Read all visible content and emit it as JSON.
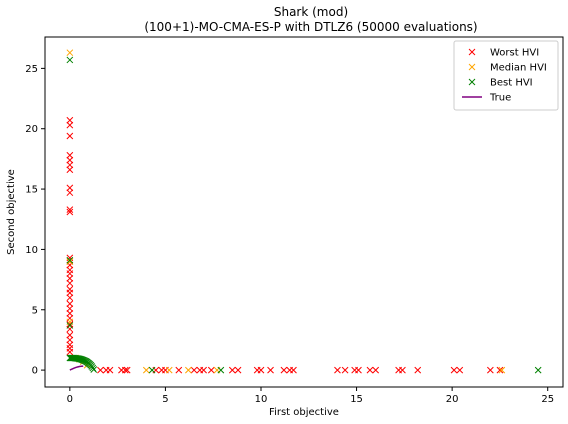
{
  "chart_data": {
    "type": "scatter",
    "title_line1": "Shark (mod)",
    "title_line2": "(100+1)-MO-CMA-ES-P with DTLZ6 (50000 evaluations)",
    "xlabel": "First objective",
    "ylabel": "Second objective",
    "xlim": [
      -1.3,
      25.8
    ],
    "ylim": [
      -1.4,
      27.6
    ],
    "xticks": [
      0,
      5,
      10,
      15,
      20,
      25
    ],
    "yticks": [
      0,
      5,
      10,
      15,
      20,
      25
    ],
    "grid": false,
    "legend_position": "top-right",
    "series": [
      {
        "name": "Worst HVI",
        "marker": "x",
        "color": "#ff0000",
        "points": [
          [
            0.0,
            20.7
          ],
          [
            0.0,
            20.3
          ],
          [
            0.0,
            19.4
          ],
          [
            0.0,
            17.8
          ],
          [
            0.0,
            17.4
          ],
          [
            0.0,
            17.0
          ],
          [
            0.0,
            16.6
          ],
          [
            0.0,
            15.1
          ],
          [
            0.0,
            14.7
          ],
          [
            0.0,
            13.3
          ],
          [
            0.0,
            13.1
          ],
          [
            0.0,
            9.3
          ],
          [
            0.0,
            9.0
          ],
          [
            0.0,
            8.7
          ],
          [
            0.0,
            8.3
          ],
          [
            0.0,
            8.0
          ],
          [
            0.0,
            7.6
          ],
          [
            0.0,
            7.2
          ],
          [
            0.0,
            6.7
          ],
          [
            0.0,
            6.4
          ],
          [
            0.0,
            6.0
          ],
          [
            0.0,
            5.5
          ],
          [
            0.0,
            5.1
          ],
          [
            0.0,
            4.7
          ],
          [
            0.0,
            4.3
          ],
          [
            0.0,
            3.8
          ],
          [
            0.0,
            3.4
          ],
          [
            0.0,
            2.9
          ],
          [
            0.0,
            2.5
          ],
          [
            0.0,
            2.1
          ],
          [
            0.0,
            1.8
          ],
          [
            0.0,
            1.5
          ],
          [
            1.6,
            0.0
          ],
          [
            1.9,
            0.0
          ],
          [
            2.1,
            0.0
          ],
          [
            2.7,
            0.0
          ],
          [
            2.9,
            0.0
          ],
          [
            3.0,
            0.0
          ],
          [
            4.5,
            0.0
          ],
          [
            4.8,
            0.0
          ],
          [
            5.0,
            0.0
          ],
          [
            5.7,
            0.0
          ],
          [
            6.5,
            0.0
          ],
          [
            6.8,
            0.0
          ],
          [
            7.0,
            0.0
          ],
          [
            7.4,
            0.0
          ],
          [
            8.5,
            0.0
          ],
          [
            8.8,
            0.0
          ],
          [
            9.8,
            0.0
          ],
          [
            10.0,
            0.0
          ],
          [
            10.5,
            0.0
          ],
          [
            11.2,
            0.0
          ],
          [
            11.5,
            0.0
          ],
          [
            11.7,
            0.0
          ],
          [
            14.0,
            0.0
          ],
          [
            14.4,
            0.0
          ],
          [
            14.9,
            0.0
          ],
          [
            15.1,
            0.0
          ],
          [
            15.7,
            0.0
          ],
          [
            16.0,
            0.0
          ],
          [
            17.2,
            0.0
          ],
          [
            17.4,
            0.0
          ],
          [
            18.2,
            0.0
          ],
          [
            20.1,
            0.0
          ],
          [
            20.4,
            0.0
          ],
          [
            22.0,
            0.0
          ],
          [
            22.5,
            0.0
          ]
        ]
      },
      {
        "name": "Median HVI",
        "marker": "x",
        "color": "#ffa500",
        "points": [
          [
            0.0,
            26.3
          ],
          [
            0.0,
            9.0
          ],
          [
            0.0,
            4.0
          ],
          [
            0.3,
            1.0
          ],
          [
            0.5,
            0.9
          ],
          [
            0.7,
            0.7
          ],
          [
            0.9,
            0.4
          ],
          [
            4.0,
            0.0
          ],
          [
            5.2,
            0.0
          ],
          [
            6.2,
            0.0
          ],
          [
            7.7,
            0.0
          ],
          [
            22.6,
            0.0
          ]
        ]
      },
      {
        "name": "Best HVI",
        "marker": "x",
        "color": "#008000",
        "points": [
          [
            0.0,
            25.7
          ],
          [
            0.0,
            9.1
          ],
          [
            0.0,
            3.7
          ],
          [
            0.0,
            1.0
          ],
          [
            0.05,
            1.0
          ],
          [
            0.1,
            1.0
          ],
          [
            0.15,
            1.0
          ],
          [
            0.2,
            1.0
          ],
          [
            0.25,
            0.99
          ],
          [
            0.3,
            0.98
          ],
          [
            0.35,
            0.97
          ],
          [
            0.4,
            0.96
          ],
          [
            0.45,
            0.95
          ],
          [
            0.5,
            0.93
          ],
          [
            0.55,
            0.91
          ],
          [
            0.6,
            0.89
          ],
          [
            0.65,
            0.86
          ],
          [
            0.7,
            0.83
          ],
          [
            0.75,
            0.8
          ],
          [
            0.8,
            0.76
          ],
          [
            0.85,
            0.72
          ],
          [
            0.9,
            0.67
          ],
          [
            0.95,
            0.61
          ],
          [
            1.0,
            0.55
          ],
          [
            1.05,
            0.48
          ],
          [
            1.1,
            0.4
          ],
          [
            1.15,
            0.3
          ],
          [
            1.2,
            0.18
          ],
          [
            1.25,
            0.05
          ],
          [
            4.3,
            0.0
          ],
          [
            7.9,
            0.0
          ],
          [
            24.5,
            0.0
          ]
        ]
      },
      {
        "name": "True",
        "marker": "line",
        "color": "#800080",
        "points": [
          [
            0.0,
            0.0
          ],
          [
            0.1,
            0.08
          ],
          [
            0.2,
            0.15
          ],
          [
            0.3,
            0.21
          ],
          [
            0.4,
            0.26
          ],
          [
            0.5,
            0.3
          ],
          [
            0.6,
            0.32
          ],
          [
            0.7,
            0.33
          ]
        ]
      }
    ]
  }
}
